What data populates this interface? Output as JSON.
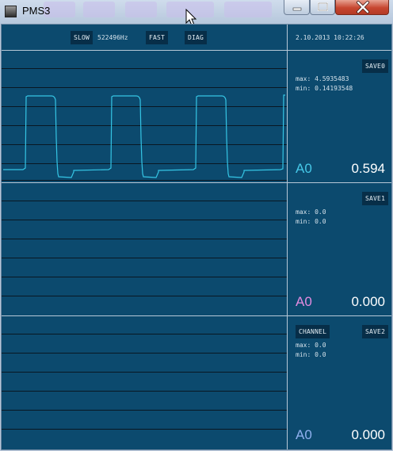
{
  "window": {
    "title": "PMS3"
  },
  "toolbar": {
    "slow_label": "SLOW",
    "frequency": "522496Hz",
    "fast_label": "FAST",
    "diag_label": "DIAG"
  },
  "datetime": "2.10.2013 10:22:26",
  "channels": [
    {
      "save_label": "SAVE0",
      "max_text": "max: 4.5935483",
      "min_text": "min: 0.14193548",
      "channel_label": "A0",
      "value": "0.594",
      "label_color": "#46c8e8",
      "trace_color": "#35c5e4"
    },
    {
      "save_label": "SAVE1",
      "max_text": "max: 0.0",
      "min_text": "min: 0.0",
      "channel_label": "A0",
      "value": "0.000",
      "label_color": "#e38be0"
    },
    {
      "save_label": "SAVE2",
      "channel_button_label": "CHANNEL",
      "max_text": "max: 0.0",
      "min_text": "min: 0.0",
      "channel_label": "A0",
      "value": "0.000",
      "label_color": "#8fb0ee"
    }
  ]
}
